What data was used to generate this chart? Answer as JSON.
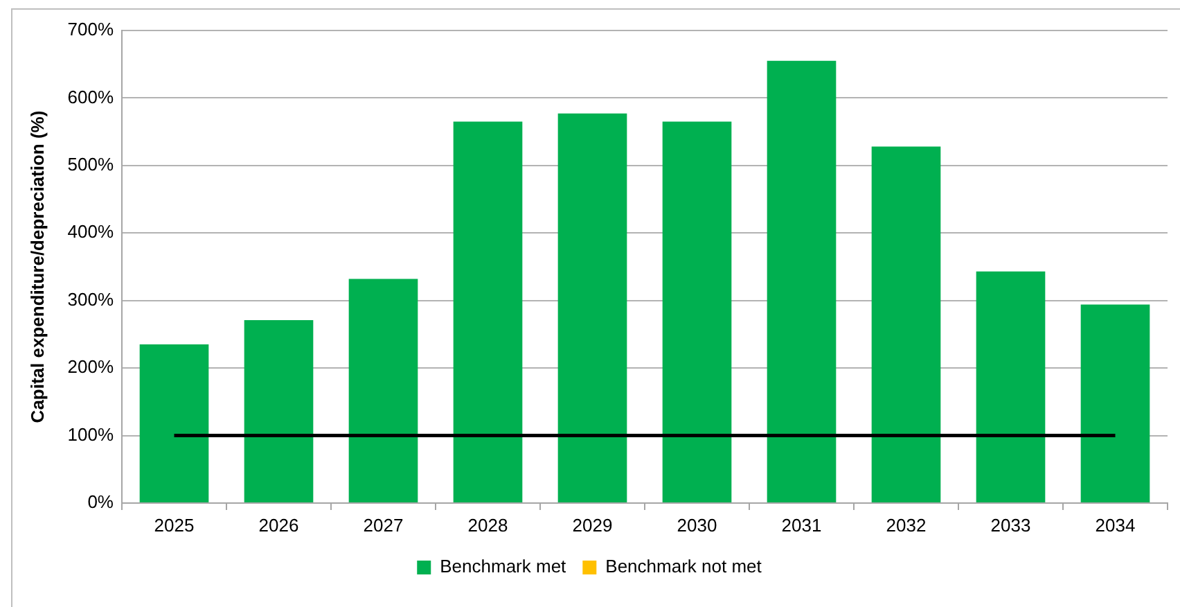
{
  "chart_data": {
    "type": "bar",
    "ylabel": "Capital expenditure/depreciation (%)",
    "categories": [
      "2025",
      "2026",
      "2027",
      "2028",
      "2029",
      "2030",
      "2031",
      "2032",
      "2033",
      "2034"
    ],
    "series": [
      {
        "name": "Benchmark met",
        "color": "#00b050",
        "values": [
          235,
          271,
          332,
          565,
          577,
          565,
          655,
          528,
          343,
          294
        ]
      },
      {
        "name": "Benchmark not met",
        "color": "#ffc000",
        "values": [
          null,
          null,
          null,
          null,
          null,
          null,
          null,
          null,
          null,
          null
        ]
      },
      {
        "type": "line",
        "color": "#000000",
        "values": [
          100,
          100,
          100,
          100,
          100,
          100,
          100,
          100,
          100,
          100
        ]
      }
    ],
    "ylim": [
      0,
      700
    ],
    "yticks": [
      {
        "value": 0,
        "label": "0%"
      },
      {
        "value": 100,
        "label": "100%"
      },
      {
        "value": 200,
        "label": "200%"
      },
      {
        "value": 300,
        "label": "300%"
      },
      {
        "value": 400,
        "label": "400%"
      },
      {
        "value": 500,
        "label": "500%"
      },
      {
        "value": 600,
        "label": "600%"
      },
      {
        "value": 700,
        "label": "700%"
      }
    ],
    "grid": "y",
    "legend": "bottom",
    "marker": "none",
    "line_style": "solid"
  }
}
